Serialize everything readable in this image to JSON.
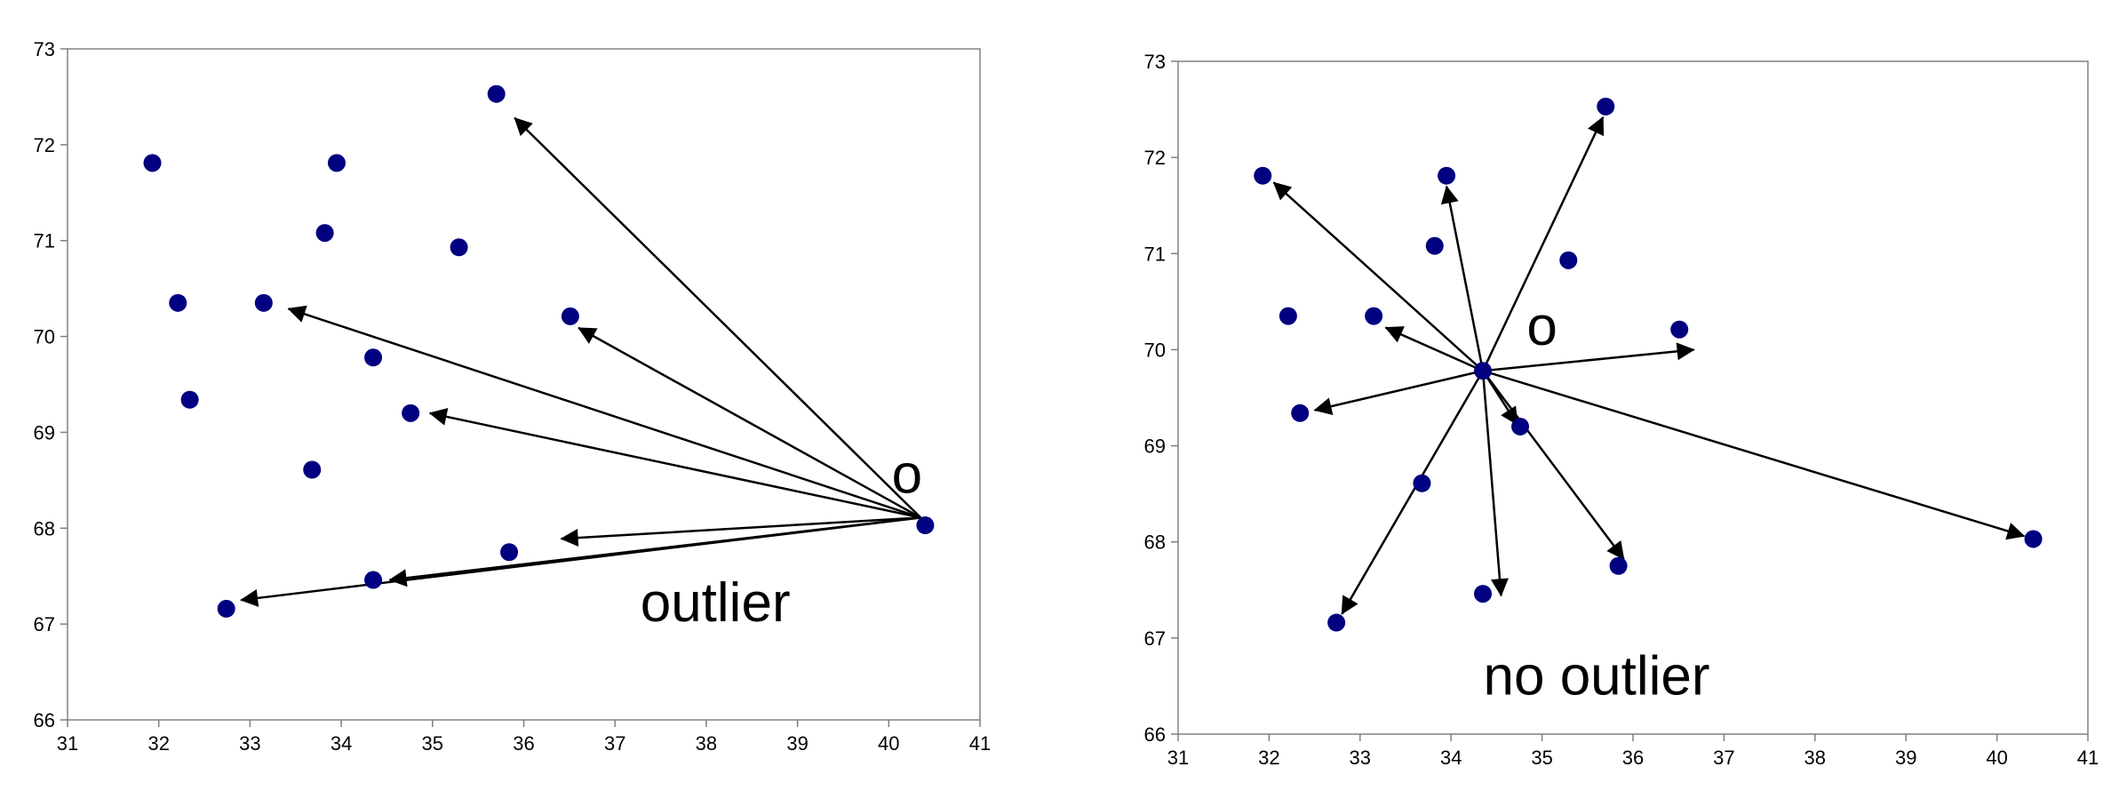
{
  "chart_data": [
    {
      "type": "scatter",
      "title": "",
      "xlabel": "",
      "ylabel": "",
      "xlim": [
        31,
        41
      ],
      "ylim": [
        66,
        73
      ],
      "xticks": [
        31,
        32,
        33,
        34,
        35,
        36,
        37,
        38,
        39,
        40,
        41
      ],
      "yticks": [
        66,
        67,
        68,
        69,
        70,
        71,
        72,
        73
      ],
      "grid": false,
      "points": [
        {
          "x": 31.93,
          "y": 71.81
        },
        {
          "x": 32.21,
          "y": 70.35
        },
        {
          "x": 32.34,
          "y": 69.34
        },
        {
          "x": 32.74,
          "y": 67.16
        },
        {
          "x": 33.15,
          "y": 70.35
        },
        {
          "x": 33.68,
          "y": 68.61
        },
        {
          "x": 33.82,
          "y": 71.08
        },
        {
          "x": 33.95,
          "y": 71.81
        },
        {
          "x": 34.35,
          "y": 69.78
        },
        {
          "x": 34.35,
          "y": 67.46
        },
        {
          "x": 34.76,
          "y": 69.2
        },
        {
          "x": 35.29,
          "y": 70.93
        },
        {
          "x": 35.7,
          "y": 72.53
        },
        {
          "x": 35.84,
          "y": 67.75
        },
        {
          "x": 36.51,
          "y": 70.21
        },
        {
          "x": 40.4,
          "y": 68.03
        }
      ],
      "focus_point": {
        "x": 40.4,
        "y": 68.03,
        "label": "o"
      },
      "arrows": [
        {
          "from": [
            40.35,
            68.11
          ],
          "to": [
            35.9,
            72.28
          ]
        },
        {
          "from": [
            40.35,
            68.11
          ],
          "to": [
            36.6,
            70.09
          ]
        },
        {
          "from": [
            40.35,
            68.11
          ],
          "to": [
            33.42,
            70.29
          ]
        },
        {
          "from": [
            40.35,
            68.11
          ],
          "to": [
            34.97,
            69.2
          ]
        },
        {
          "from": [
            40.35,
            68.11
          ],
          "to": [
            36.41,
            67.89
          ]
        },
        {
          "from": [
            40.35,
            68.11
          ],
          "to": [
            34.53,
            67.46
          ]
        },
        {
          "from": [
            40.35,
            68.11
          ],
          "to": [
            32.9,
            67.25
          ]
        }
      ],
      "annotations": [
        {
          "text": "o",
          "x": 40.2,
          "y": 68.37
        },
        {
          "text": "outlier",
          "x": 38.1,
          "y": 67.03
        }
      ]
    },
    {
      "type": "scatter",
      "title": "",
      "xlabel": "",
      "ylabel": "",
      "xlim": [
        31,
        41
      ],
      "ylim": [
        66,
        73
      ],
      "xticks": [
        31,
        32,
        33,
        34,
        35,
        36,
        37,
        38,
        39,
        40,
        41
      ],
      "yticks": [
        66,
        67,
        68,
        69,
        70,
        71,
        72,
        73
      ],
      "grid": false,
      "points": [
        {
          "x": 31.93,
          "y": 71.81
        },
        {
          "x": 32.21,
          "y": 70.35
        },
        {
          "x": 32.34,
          "y": 69.34
        },
        {
          "x": 32.74,
          "y": 67.16
        },
        {
          "x": 33.15,
          "y": 70.35
        },
        {
          "x": 33.68,
          "y": 68.61
        },
        {
          "x": 33.82,
          "y": 71.08
        },
        {
          "x": 33.95,
          "y": 71.81
        },
        {
          "x": 34.35,
          "y": 69.78
        },
        {
          "x": 34.35,
          "y": 67.46
        },
        {
          "x": 34.76,
          "y": 69.2
        },
        {
          "x": 35.29,
          "y": 70.93
        },
        {
          "x": 35.7,
          "y": 72.53
        },
        {
          "x": 35.84,
          "y": 67.75
        },
        {
          "x": 36.51,
          "y": 70.21
        },
        {
          "x": 40.4,
          "y": 68.03
        }
      ],
      "focus_point": {
        "x": 34.35,
        "y": 69.78,
        "label": "o"
      },
      "arrows": [
        {
          "from": [
            34.35,
            69.78
          ],
          "to": [
            35.67,
            72.42
          ]
        },
        {
          "from": [
            34.35,
            69.78
          ],
          "to": [
            33.95,
            71.7
          ]
        },
        {
          "from": [
            34.35,
            69.78
          ],
          "to": [
            32.05,
            71.74
          ]
        },
        {
          "from": [
            34.35,
            69.78
          ],
          "to": [
            33.28,
            70.23
          ]
        },
        {
          "from": [
            34.35,
            69.78
          ],
          "to": [
            36.67,
            70.0
          ]
        },
        {
          "from": [
            34.35,
            69.78
          ],
          "to": [
            32.5,
            69.37
          ]
        },
        {
          "from": [
            34.35,
            69.78
          ],
          "to": [
            34.73,
            69.22
          ]
        },
        {
          "from": [
            34.35,
            69.78
          ],
          "to": [
            35.9,
            67.82
          ]
        },
        {
          "from": [
            34.35,
            69.78
          ],
          "to": [
            40.3,
            68.06
          ]
        },
        {
          "from": [
            34.35,
            69.78
          ],
          "to": [
            34.55,
            67.44
          ]
        },
        {
          "from": [
            34.35,
            69.78
          ],
          "to": [
            32.8,
            67.25
          ]
        }
      ],
      "annotations": [
        {
          "text": "o",
          "x": 35.0,
          "y": 70.05
        },
        {
          "text": "no outlier",
          "x": 35.6,
          "y": 66.41
        }
      ]
    }
  ],
  "style": {
    "point_color": "#000080",
    "axis_color": "#808080",
    "frame_color": "#808080",
    "arrow_color": "#000000",
    "background": "#ffffff"
  }
}
